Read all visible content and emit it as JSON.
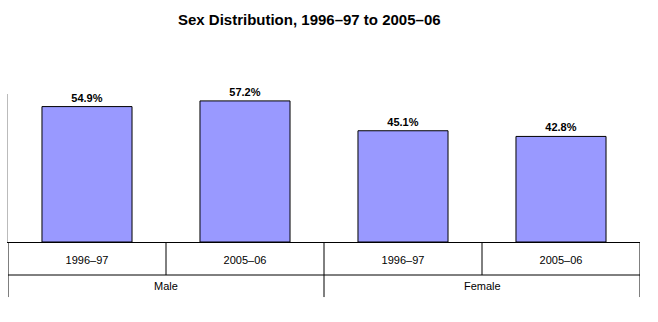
{
  "chart_data": {
    "type": "bar",
    "title": "Sex Distribution, 1996–97 to 2005–06",
    "categories": [
      "1996–97",
      "2005–06",
      "1996–97",
      "2005–06"
    ],
    "groups": [
      "Male",
      "Male",
      "Female",
      "Female"
    ],
    "values": [
      54.9,
      57.2,
      45.1,
      42.8
    ],
    "value_labels": [
      "54.9%",
      "57.2%",
      "45.1%",
      "42.8%"
    ],
    "color": "#9999ff",
    "ylim": [
      0,
      60
    ],
    "yticks": [],
    "grid": false,
    "data_labels": true,
    "tick_labels": "x"
  }
}
